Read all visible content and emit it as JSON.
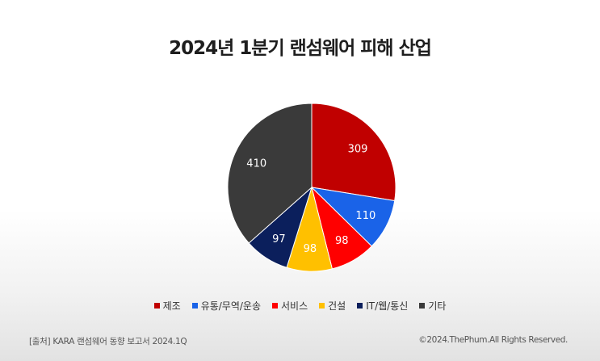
{
  "chart_data": {
    "type": "pie",
    "title": "2024년 1분기 랜섬웨어 피해 산업",
    "categories": [
      "제조",
      "유통/무역/운송",
      "서비스",
      "건설",
      "IT/웹/통신",
      "기타"
    ],
    "values": [
      309,
      110,
      98,
      98,
      97,
      410
    ],
    "colors": [
      "#c00000",
      "#1a63e8",
      "#ff0000",
      "#ffc000",
      "#0b1f5c",
      "#3a3a3a"
    ],
    "legend": "bottom",
    "label_color": "#ffffff"
  },
  "footer": {
    "source": "[출처] KARA 랜섬웨어 동향 보고서 2024.1Q",
    "copyright": "©2024.ThePhum.All Rights Reserved."
  }
}
